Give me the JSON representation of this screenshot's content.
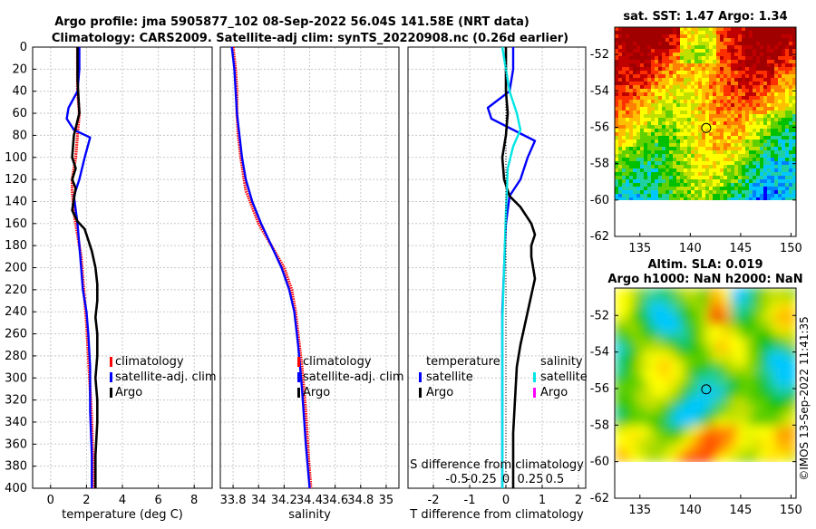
{
  "header": {
    "title_line1": "Argo profile: jma 5905877_102 08-Sep-2022 56.04S 141.58E (NRT data)",
    "title_line2": "Climatology: CARS2009. Satellite-adj clim: synTS_20220908.nc (0.26d earlier)"
  },
  "watermark": "©IMOS 13-Sep-2022 11:41:35",
  "colors": {
    "climatology": "#ff0000",
    "satellite": "#0000ff",
    "argo": "#000000",
    "salinity_satellite": "#00e5e5",
    "salinity_argo": "#ff00ff",
    "grid": "#c8c8c8"
  },
  "chart_data": [
    {
      "type": "line",
      "name": "temperature-profile",
      "xlabel": "temperature (deg C)",
      "ylabel": "",
      "xlim": [
        -1,
        9
      ],
      "ylim": [
        400,
        0
      ],
      "xticks": [
        0,
        2,
        4,
        6,
        8
      ],
      "yticks": [
        0,
        20,
        40,
        60,
        80,
        100,
        120,
        140,
        160,
        180,
        200,
        220,
        240,
        260,
        280,
        300,
        320,
        340,
        360,
        380,
        400
      ],
      "legend": [
        "climatology",
        "satellite-adj. clim",
        "Argo"
      ],
      "series": [
        {
          "name": "climatology",
          "color": "#ff0000",
          "style": "dotted",
          "x": [
            1.5,
            1.5,
            1.5,
            1.6,
            1.5,
            1.4,
            1.2,
            1.2,
            1.3,
            1.5,
            1.7,
            1.8,
            1.9,
            2.0,
            2.1,
            2.2,
            2.3,
            2.35,
            2.4
          ],
          "y": [
            0,
            20,
            40,
            60,
            80,
            100,
            120,
            130,
            150,
            170,
            190,
            210,
            230,
            250,
            280,
            310,
            340,
            370,
            400
          ]
        },
        {
          "name": "satellite-adj. clim",
          "color": "#0000ff",
          "style": "solid",
          "x": [
            1.6,
            1.6,
            1.5,
            1.0,
            0.9,
            1.3,
            2.2,
            1.9,
            1.6,
            1.3,
            1.5,
            1.6,
            1.7,
            1.8,
            2.0,
            2.1,
            2.2,
            2.2,
            2.3,
            2.3
          ],
          "y": [
            0,
            20,
            40,
            55,
            65,
            75,
            82,
            100,
            120,
            135,
            160,
            180,
            200,
            220,
            240,
            260,
            290,
            330,
            370,
            400
          ]
        },
        {
          "name": "Argo",
          "color": "#000000",
          "style": "solid",
          "x": [
            1.5,
            1.5,
            1.6,
            1.3,
            1.2,
            1.4,
            1.2,
            1.4,
            1.3,
            1.2,
            1.5,
            1.9,
            2.1,
            2.3,
            2.5,
            2.6,
            2.6,
            2.5,
            2.6,
            2.6,
            2.5,
            2.6,
            2.6,
            2.5,
            2.5
          ],
          "y": [
            0,
            30,
            60,
            80,
            100,
            110,
            120,
            128,
            138,
            148,
            158,
            165,
            175,
            185,
            200,
            215,
            230,
            245,
            260,
            280,
            300,
            320,
            340,
            370,
            400
          ]
        }
      ]
    },
    {
      "type": "line",
      "name": "salinity-profile",
      "xlabel": "salinity",
      "ylabel": "",
      "xlim": [
        33.7,
        35.1
      ],
      "ylim": [
        400,
        0
      ],
      "xticks": [
        33.8,
        34,
        34.2,
        34.4,
        34.6,
        34.8,
        35
      ],
      "xticklabels": [
        "33.8",
        "34",
        "34.2",
        "34.4",
        "34.6",
        "34.8",
        "35"
      ],
      "legend": [
        "climatology",
        "satellite-adj. clim",
        "Argo"
      ],
      "series": [
        {
          "name": "climatology",
          "color": "#ff0000",
          "style": "dotted",
          "x": [
            33.8,
            33.82,
            33.83,
            33.83,
            33.84,
            33.86,
            33.9,
            34.0,
            34.1,
            34.2,
            34.26,
            34.29,
            34.31,
            34.34,
            34.37,
            34.39,
            34.41
          ],
          "y": [
            0,
            20,
            40,
            60,
            80,
            100,
            130,
            160,
            180,
            200,
            220,
            240,
            260,
            290,
            330,
            370,
            400
          ]
        },
        {
          "name": "satellite-adj. clim",
          "color": "#0000ff",
          "style": "solid",
          "x": [
            33.79,
            33.81,
            33.82,
            33.83,
            33.85,
            33.87,
            33.9,
            33.95,
            34.02,
            34.1,
            34.18,
            34.24,
            34.28,
            34.31,
            34.34,
            34.37,
            34.4
          ],
          "y": [
            0,
            20,
            40,
            60,
            80,
            100,
            120,
            140,
            160,
            180,
            200,
            220,
            240,
            270,
            310,
            360,
            400
          ]
        }
      ]
    },
    {
      "type": "line",
      "name": "difference-profile",
      "xlabel": "T difference from climatology",
      "top_xlabel": "S difference from climatology",
      "xlim": [
        -2.7,
        2.2
      ],
      "ylim": [
        400,
        0
      ],
      "xticks": [
        -2,
        -1,
        0,
        1,
        2
      ],
      "xticklabels": [
        "-2",
        "-1",
        "0",
        "1",
        "2"
      ],
      "secondary_xticks": [
        -1.35,
        -0.675,
        0,
        0.675,
        1.35
      ],
      "secondary_xticklabels": [
        "-0.5",
        "-0.25",
        "0",
        "0.25",
        "0.5"
      ],
      "legend": [
        "temperature",
        "satellite",
        "Argo",
        "salinity",
        "satellite",
        "Argo"
      ],
      "series": [
        {
          "name": "T satellite",
          "color": "#0000ff",
          "style": "solid",
          "x": [
            0.2,
            0.2,
            0.1,
            -0.5,
            -0.4,
            0.2,
            0.8,
            0.6,
            0.4,
            0.1,
            0.0,
            -0.05,
            -0.1,
            -0.1,
            -0.1,
            -0.1,
            -0.1
          ],
          "y": [
            0,
            20,
            40,
            55,
            65,
            75,
            85,
            100,
            120,
            135,
            160,
            200,
            240,
            280,
            320,
            360,
            400
          ]
        },
        {
          "name": "T Argo",
          "color": "#000000",
          "style": "solid",
          "x": [
            0.0,
            0.0,
            0.05,
            0.0,
            -0.1,
            -0.05,
            0.1,
            0.4,
            0.6,
            0.7,
            0.8,
            0.7,
            0.7,
            0.75,
            0.8,
            0.7,
            0.6,
            0.5,
            0.4,
            0.3,
            0.25,
            0.2,
            0.2,
            0.2
          ],
          "y": [
            0,
            40,
            60,
            80,
            100,
            120,
            135,
            145,
            155,
            160,
            170,
            180,
            190,
            200,
            210,
            225,
            240,
            255,
            270,
            290,
            320,
            350,
            380,
            400
          ]
        },
        {
          "name": "S satellite",
          "color": "#00e5e5",
          "style": "solid",
          "x": [
            -0.1,
            0.0,
            0.1,
            0.3,
            0.4,
            0.2,
            0.05,
            0.0,
            -0.05,
            -0.1,
            -0.1,
            -0.1,
            -0.1
          ],
          "y": [
            0,
            20,
            40,
            60,
            75,
            90,
            110,
            150,
            200,
            250,
            300,
            350,
            400
          ]
        },
        {
          "name": "zero",
          "color": "#000000",
          "style": "dotted",
          "x": [
            0,
            0
          ],
          "y": [
            0,
            400
          ]
        }
      ]
    },
    {
      "type": "heatmap",
      "name": "sst-map",
      "title": "sat. SST: 1.47 Argo: 1.34",
      "xlim": [
        132.5,
        150.5
      ],
      "ylim": [
        -62,
        -50.5
      ],
      "xticks": [
        135,
        140,
        145,
        150
      ],
      "yticks": [
        -52,
        -54,
        -56,
        -58,
        -60,
        -62
      ],
      "marker": {
        "lon": 141.58,
        "lat": -56.04
      },
      "data_extent_lat": [
        -60,
        -50.5
      ]
    },
    {
      "type": "heatmap",
      "name": "sla-map",
      "title_line1": "Altim. SLA: 0.019",
      "title_line2": "Argo h1000: NaN h2000: NaN",
      "xlim": [
        132.5,
        150.5
      ],
      "ylim": [
        -62,
        -50.5
      ],
      "xticks": [
        135,
        140,
        145,
        150
      ],
      "yticks": [
        -52,
        -54,
        -56,
        -58,
        -60,
        -62
      ],
      "marker": {
        "lon": 141.58,
        "lat": -56.04
      },
      "data_extent_lat": [
        -60,
        -50.5
      ]
    }
  ]
}
